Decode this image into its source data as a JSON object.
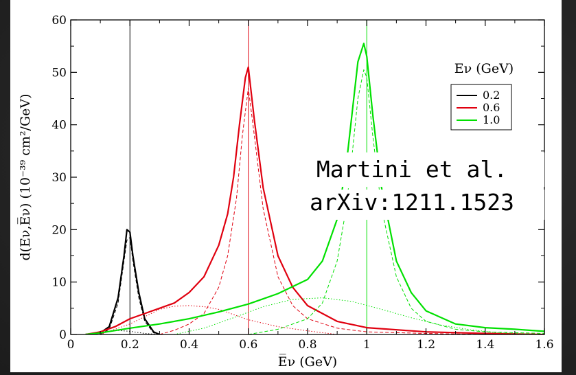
{
  "chart_data": {
    "type": "line",
    "xlabel": "E̅ν (GeV)",
    "ylabel": "d(Eν,E̅ν) (10⁻³⁹ cm²/GeV)",
    "xlim": [
      0,
      1.6
    ],
    "ylim": [
      0,
      60
    ],
    "x_ticks": [
      "0",
      "0.2",
      "0.4",
      "0.6",
      "0.8",
      "1",
      "1.2",
      "1.4",
      "1.6"
    ],
    "y_ticks": [
      "0",
      "10",
      "20",
      "30",
      "40",
      "50",
      "60"
    ],
    "legend": {
      "title": "Eν (GeV)",
      "position": "top-right",
      "entries": [
        "0.2",
        "0.6",
        "1.0"
      ]
    },
    "annotation": [
      "Martini et al.",
      "arXiv:1211.1523"
    ],
    "vertical_lines": [
      {
        "x": 0.2,
        "color": "#000000"
      },
      {
        "x": 0.6,
        "color": "#e0000f"
      },
      {
        "x": 1.0,
        "color": "#00e000"
      }
    ],
    "series": [
      {
        "name": "0.2",
        "color": "#000000",
        "style": "solid",
        "x": [
          0.05,
          0.1,
          0.13,
          0.16,
          0.18,
          0.19,
          0.2,
          0.21,
          0.23,
          0.25,
          0.28,
          0.3
        ],
        "y": [
          0,
          0.3,
          1.5,
          7,
          15,
          20,
          19.5,
          15,
          8,
          3,
          0.5,
          0
        ]
      },
      {
        "name": "0.2 dashed",
        "color": "#000000",
        "style": "dashed",
        "x": [
          0.1,
          0.13,
          0.16,
          0.18,
          0.19,
          0.2,
          0.21,
          0.23,
          0.25,
          0.28,
          0.3
        ],
        "y": [
          0,
          1,
          6,
          14,
          18,
          18.5,
          14,
          7,
          2.5,
          0.3,
          0
        ]
      },
      {
        "name": "0.2 dotted",
        "color": "#000000",
        "style": "dotted",
        "x": [
          0.05,
          0.1,
          0.15,
          0.2,
          0.25,
          0.3
        ],
        "y": [
          0,
          0.3,
          0.8,
          0.6,
          0.2,
          0
        ]
      },
      {
        "name": "0.6",
        "color": "#e0000f",
        "style": "solid",
        "x": [
          0.05,
          0.1,
          0.15,
          0.2,
          0.25,
          0.3,
          0.35,
          0.4,
          0.45,
          0.5,
          0.53,
          0.55,
          0.57,
          0.59,
          0.6,
          0.62,
          0.65,
          0.7,
          0.75,
          0.8,
          0.9,
          1.0,
          1.2,
          1.4,
          1.6
        ],
        "y": [
          0,
          0.5,
          1.5,
          3,
          4,
          5,
          6,
          8,
          11,
          17,
          23,
          30,
          40,
          49,
          51,
          41,
          28,
          15,
          9,
          5.5,
          2.5,
          1.3,
          0.5,
          0.2,
          0
        ]
      },
      {
        "name": "0.6 dashed",
        "color": "#e0000f",
        "style": "dashed",
        "x": [
          0.3,
          0.35,
          0.4,
          0.45,
          0.5,
          0.53,
          0.56,
          0.58,
          0.6,
          0.62,
          0.65,
          0.7,
          0.75,
          0.8,
          0.9,
          1.0,
          1.2,
          1.4
        ],
        "y": [
          0,
          0.8,
          2,
          4,
          9,
          15,
          26,
          38,
          47,
          38,
          24,
          11,
          5.5,
          3,
          1.2,
          0.5,
          0.2,
          0
        ]
      },
      {
        "name": "0.6 dotted",
        "color": "#e0000f",
        "style": "dotted",
        "x": [
          0.1,
          0.2,
          0.3,
          0.35,
          0.4,
          0.45,
          0.5,
          0.55,
          0.6,
          0.7,
          0.8,
          0.9
        ],
        "y": [
          0,
          2,
          4.8,
          5.4,
          5.5,
          5.3,
          4.8,
          3.8,
          2.8,
          1.5,
          0.7,
          0
        ]
      },
      {
        "name": "1.0",
        "color": "#00e000",
        "style": "solid",
        "x": [
          0.05,
          0.1,
          0.2,
          0.3,
          0.4,
          0.5,
          0.6,
          0.7,
          0.8,
          0.85,
          0.9,
          0.93,
          0.95,
          0.97,
          0.99,
          1.0,
          1.02,
          1.05,
          1.1,
          1.15,
          1.2,
          1.3,
          1.4,
          1.5,
          1.6
        ],
        "y": [
          0,
          0.3,
          1.2,
          2,
          3,
          4.3,
          5.8,
          7.8,
          10.5,
          14,
          22,
          32,
          42,
          52,
          55.5,
          53,
          42,
          28,
          14,
          8,
          4.5,
          2,
          1.3,
          1,
          0.6
        ]
      },
      {
        "name": "1.0 dashed",
        "color": "#00e000",
        "style": "dashed",
        "x": [
          0.6,
          0.7,
          0.8,
          0.85,
          0.9,
          0.93,
          0.95,
          0.97,
          0.99,
          1.0,
          1.02,
          1.05,
          1.1,
          1.15,
          1.2,
          1.3,
          1.4,
          1.6
        ],
        "y": [
          0,
          1,
          3,
          6,
          14,
          24,
          34,
          45,
          50.5,
          49,
          38,
          24,
          11,
          5,
          2.5,
          1,
          0.5,
          0.2
        ]
      },
      {
        "name": "1.0 dotted",
        "color": "#00e000",
        "style": "dotted",
        "x": [
          0.35,
          0.45,
          0.55,
          0.65,
          0.75,
          0.85,
          0.95,
          1.05,
          1.15,
          1.25,
          1.35,
          1.45,
          1.6
        ],
        "y": [
          0,
          1.2,
          3.2,
          5.3,
          6.7,
          7,
          6.3,
          4.8,
          3.2,
          1.8,
          0.9,
          0.3,
          0
        ]
      }
    ]
  }
}
